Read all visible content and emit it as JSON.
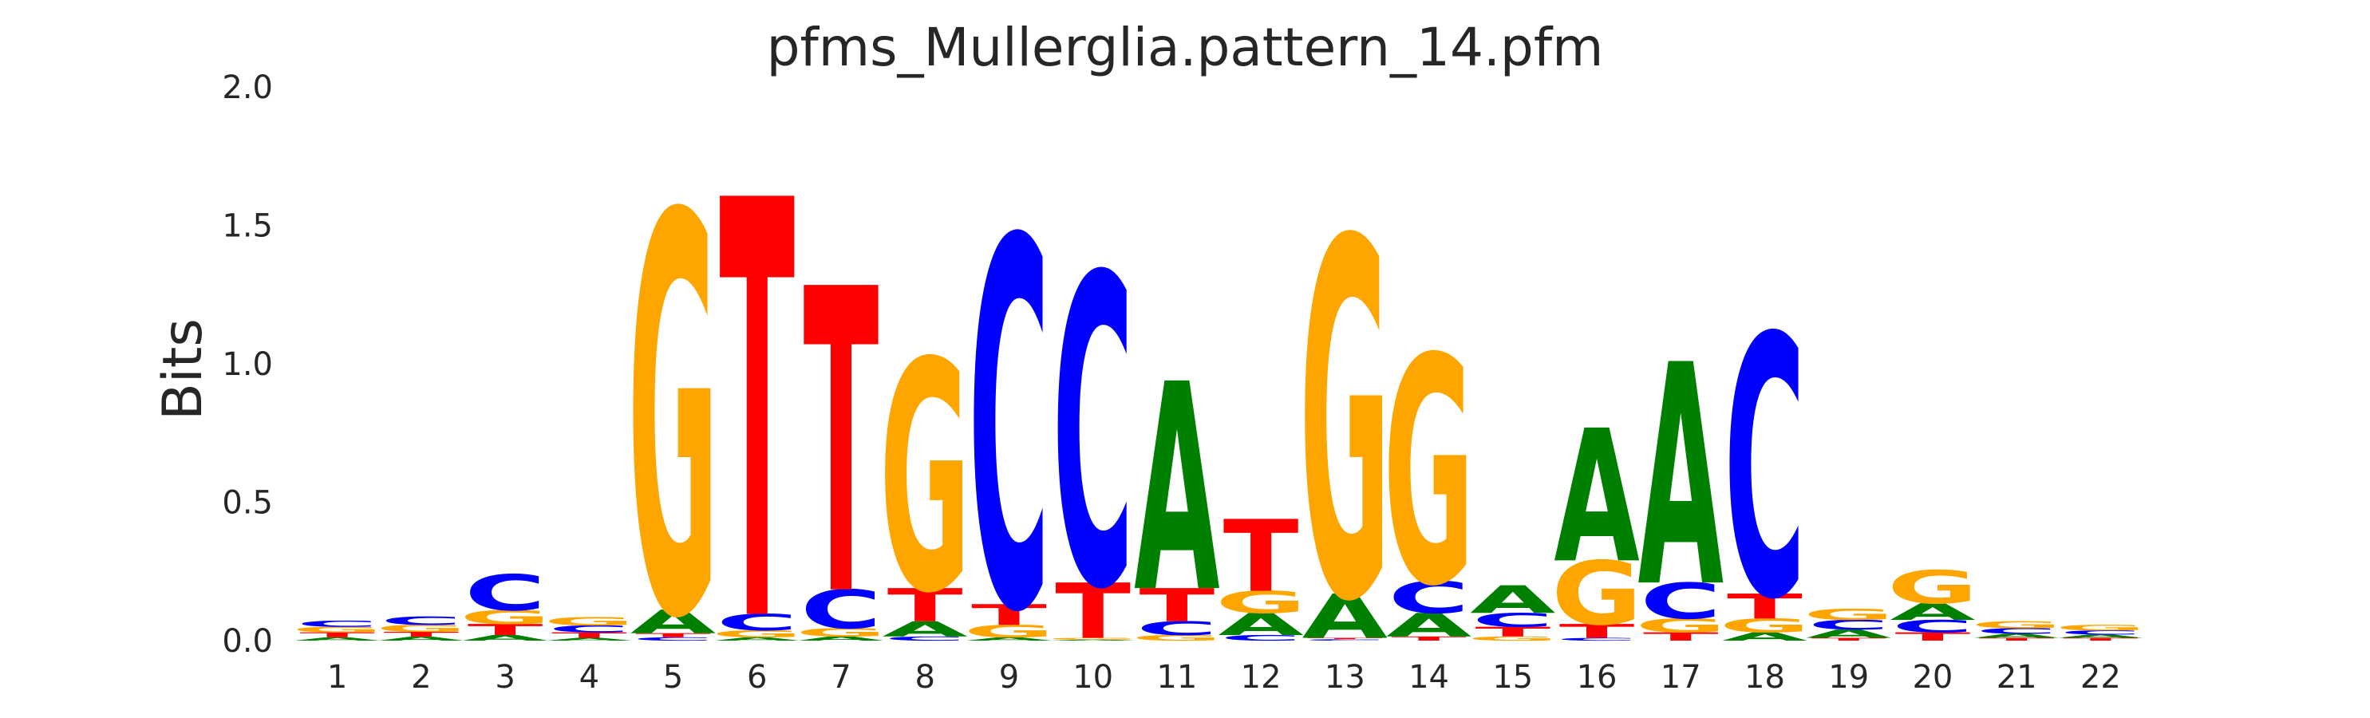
{
  "chart_data": {
    "type": "sequence-logo",
    "title": "pfms_Mullerglia.pattern_14.pfm",
    "ylabel": "Bits",
    "xlabel": "",
    "ylim": [
      0,
      2.0
    ],
    "y_ticks": [
      "0.0",
      "0.5",
      "1.0",
      "1.5",
      "2.0"
    ],
    "positions": [
      "1",
      "2",
      "3",
      "4",
      "5",
      "6",
      "7",
      "8",
      "9",
      "10",
      "11",
      "12",
      "13",
      "14",
      "15",
      "16",
      "17",
      "18",
      "19",
      "20",
      "21",
      "22"
    ],
    "colors": {
      "A": "#008000",
      "C": "#0000ff",
      "G": "#ffa500",
      "T": "#ff0000"
    },
    "grid": false,
    "columns": [
      [
        [
          "A",
          0.012
        ],
        [
          "T",
          0.018
        ],
        [
          "G",
          0.02
        ],
        [
          "C",
          0.022
        ]
      ],
      [
        [
          "A",
          0.014
        ],
        [
          "T",
          0.018
        ],
        [
          "G",
          0.025
        ],
        [
          "C",
          0.03
        ]
      ],
      [
        [
          "A",
          0.02
        ],
        [
          "T",
          0.04
        ],
        [
          "G",
          0.05
        ],
        [
          "C",
          0.13
        ]
      ],
      [
        [
          "A",
          0.01
        ],
        [
          "T",
          0.02
        ],
        [
          "C",
          0.025
        ],
        [
          "G",
          0.03
        ]
      ],
      [
        [
          "C",
          0.012
        ],
        [
          "T",
          0.015
        ],
        [
          "A",
          0.085
        ],
        [
          "G",
          1.44
        ]
      ],
      [
        [
          "A",
          0.012
        ],
        [
          "G",
          0.025
        ],
        [
          "C",
          0.06
        ],
        [
          "T",
          1.51
        ]
      ],
      [
        [
          "A",
          0.015
        ],
        [
          "G",
          0.03
        ],
        [
          "C",
          0.14
        ],
        [
          "T",
          1.1
        ]
      ],
      [
        [
          "C",
          0.015
        ],
        [
          "A",
          0.055
        ],
        [
          "T",
          0.12
        ],
        [
          "G",
          0.83
        ]
      ],
      [
        [
          "A",
          0.012
        ],
        [
          "G",
          0.045
        ],
        [
          "T",
          0.075
        ],
        [
          "C",
          1.33
        ]
      ],
      [
        [
          "A",
          0.004
        ],
        [
          "G",
          0.006
        ],
        [
          "T",
          0.2
        ],
        [
          "C",
          1.12
        ]
      ],
      [
        [
          "G",
          0.02
        ],
        [
          "C",
          0.05
        ],
        [
          "T",
          0.12
        ],
        [
          "A",
          0.75
        ]
      ],
      [
        [
          "C",
          0.02
        ],
        [
          "A",
          0.08
        ],
        [
          "G",
          0.08
        ],
        [
          "T",
          0.26
        ]
      ],
      [
        [
          "C",
          0.005
        ],
        [
          "T",
          0.005
        ],
        [
          "A",
          0.16
        ],
        [
          "G",
          1.29
        ]
      ],
      [
        [
          "T",
          0.015
        ],
        [
          "A",
          0.085
        ],
        [
          "C",
          0.115
        ],
        [
          "G",
          0.82
        ]
      ],
      [
        [
          "G",
          0.015
        ],
        [
          "T",
          0.035
        ],
        [
          "C",
          0.05
        ],
        [
          "A",
          0.1
        ]
      ],
      [
        [
          "C",
          0.01
        ],
        [
          "T",
          0.05
        ],
        [
          "G",
          0.23
        ],
        [
          "A",
          0.48
        ]
      ],
      [
        [
          "T",
          0.03
        ],
        [
          "G",
          0.05
        ],
        [
          "C",
          0.13
        ],
        [
          "A",
          0.8
        ]
      ],
      [
        [
          "A",
          0.03
        ],
        [
          "G",
          0.05
        ],
        [
          "T",
          0.09
        ],
        [
          "C",
          0.94
        ]
      ],
      [
        [
          "T",
          0.01
        ],
        [
          "A",
          0.03
        ],
        [
          "C",
          0.035
        ],
        [
          "G",
          0.04
        ]
      ],
      [
        [
          "T",
          0.03
        ],
        [
          "C",
          0.045
        ],
        [
          "A",
          0.06
        ],
        [
          "G",
          0.12
        ]
      ],
      [
        [
          "T",
          0.01
        ],
        [
          "A",
          0.015
        ],
        [
          "C",
          0.02
        ],
        [
          "G",
          0.025
        ]
      ],
      [
        [
          "T",
          0.01
        ],
        [
          "A",
          0.012
        ],
        [
          "C",
          0.015
        ],
        [
          "G",
          0.02
        ]
      ]
    ]
  }
}
